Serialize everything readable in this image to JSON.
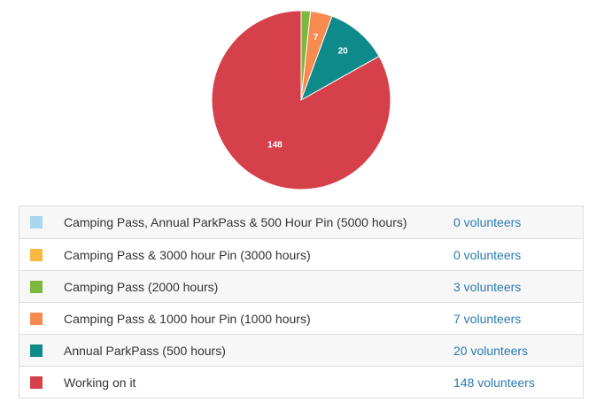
{
  "colors": {
    "slice_label_text": "#ffffff",
    "link": "#2a7ab0"
  },
  "chart_data": {
    "type": "pie",
    "slices": [
      {
        "label": "Camping Pass, Annual ParkPass & 500 Hour Pin (5000 hours)",
        "value": 0,
        "color": "#a8d8f0",
        "count_text": "0 volunteers",
        "data_label": ""
      },
      {
        "label": "Camping Pass & 3000 hour Pin (3000 hours)",
        "value": 0,
        "color": "#f5b942",
        "count_text": "0 volunteers",
        "data_label": ""
      },
      {
        "label": "Camping Pass (2000 hours)",
        "value": 3,
        "color": "#7cb83e",
        "count_text": "3 volunteers",
        "data_label": ""
      },
      {
        "label": "Camping Pass & 1000 hour Pin (1000 hours)",
        "value": 7,
        "color": "#f78a4f",
        "count_text": "7 volunteers",
        "data_label": "7"
      },
      {
        "label": "Annual ParkPass (500 hours)",
        "value": 20,
        "color": "#0f8a8a",
        "count_text": "20 volunteers",
        "data_label": "20"
      },
      {
        "label": "Working on it",
        "value": 148,
        "color": "#d6404a",
        "count_text": "148 volunteers",
        "data_label": "148"
      }
    ]
  }
}
